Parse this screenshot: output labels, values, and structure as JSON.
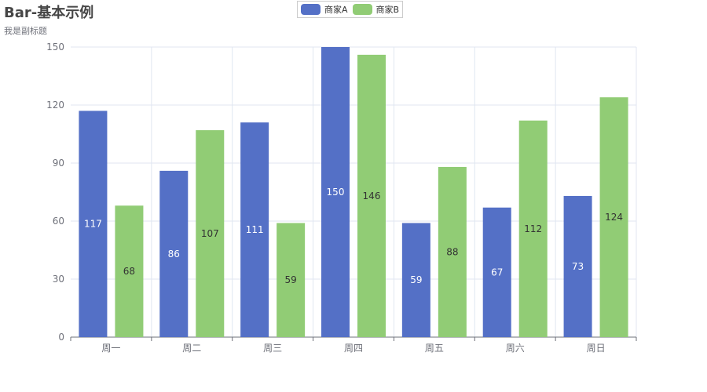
{
  "chart_data": {
    "type": "bar",
    "title": "Bar-基本示例",
    "subtitle": "我是副标题",
    "categories": [
      "周一",
      "周二",
      "周三",
      "周四",
      "周五",
      "周六",
      "周日"
    ],
    "series": [
      {
        "name": "商家A",
        "color": "#5470c6",
        "label_color": "#ffffff",
        "values": [
          117,
          86,
          111,
          150,
          59,
          67,
          73
        ]
      },
      {
        "name": "商家B",
        "color": "#91cc75",
        "label_color": "#333333",
        "values": [
          68,
          107,
          59,
          146,
          88,
          112,
          124
        ]
      }
    ],
    "yticks": [
      "0",
      "30",
      "60",
      "90",
      "120",
      "150"
    ],
    "ylim": [
      0,
      150
    ],
    "grid": true,
    "legend_position": "top-center",
    "axis_color": "#6e7079",
    "grid_color": "#e0e6f1"
  }
}
